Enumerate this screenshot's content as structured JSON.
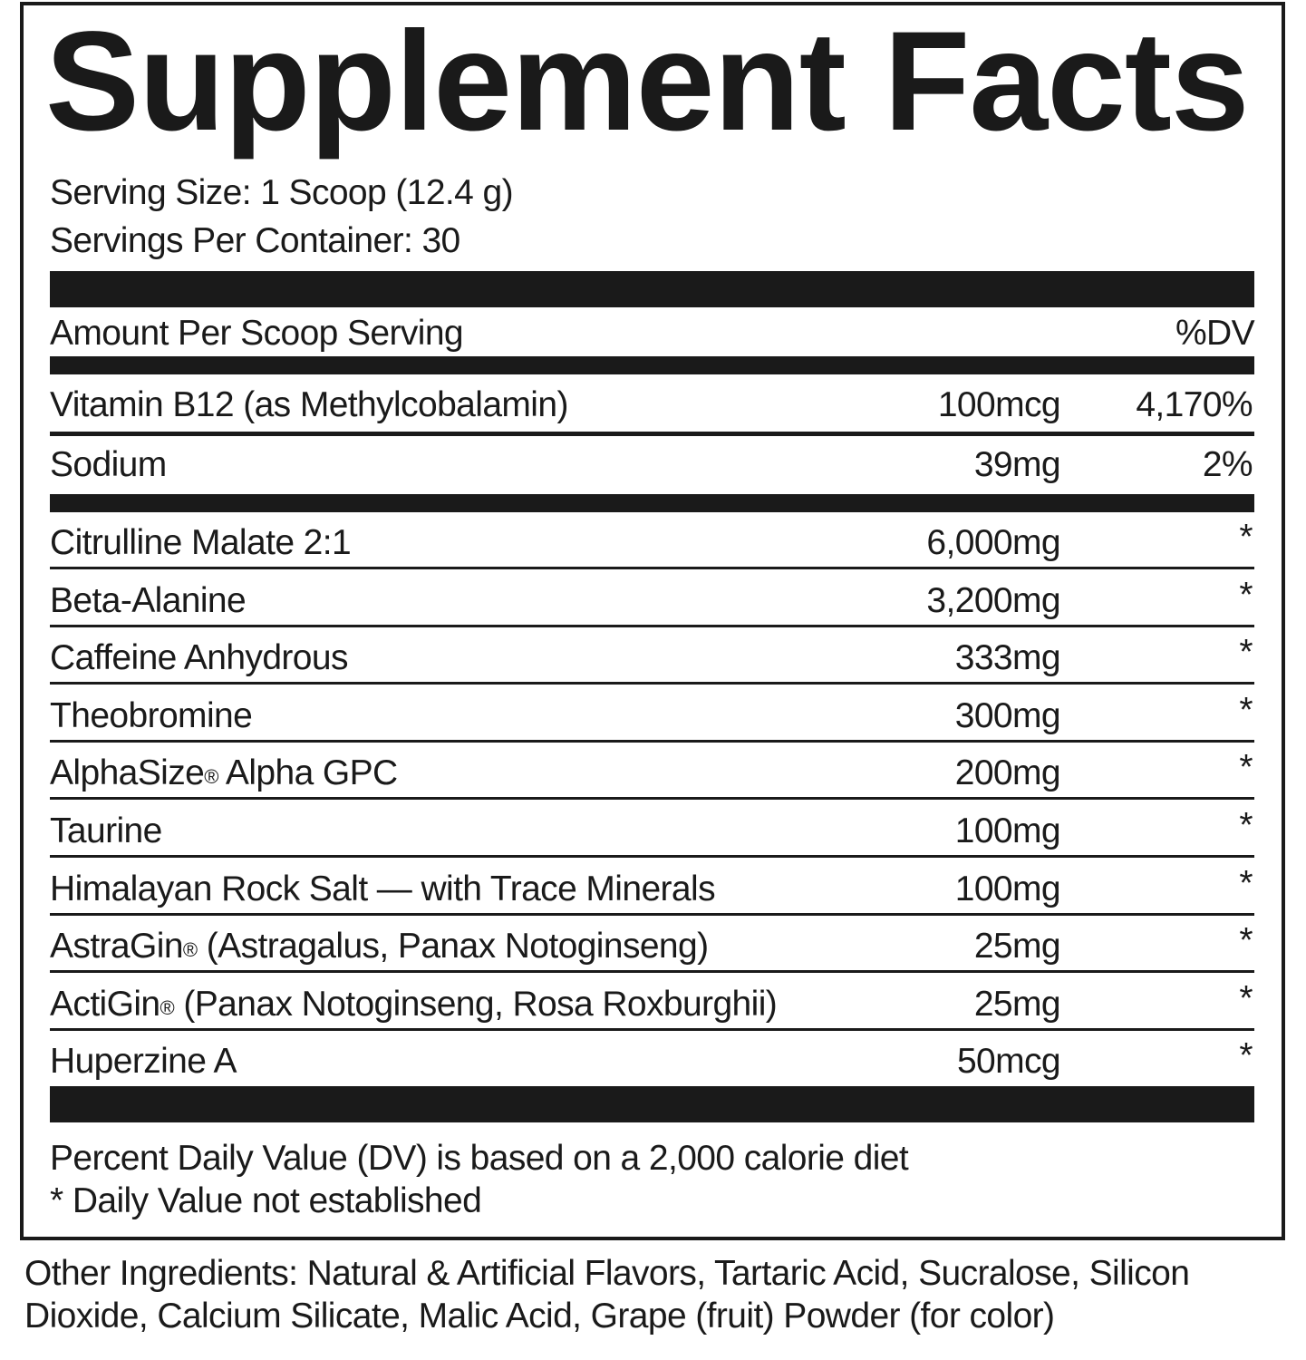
{
  "title": "Supplement Facts",
  "serving_size": "Serving Size: 1 Scoop (12.4 g)",
  "servings_per_container": "Servings Per Container: 30",
  "header": {
    "amount_label": "Amount Per Scoop Serving",
    "dv_label": "%DV"
  },
  "vitamins": [
    {
      "name": "Vitamin B12 (as Methylcobalamin)",
      "amount": "100mcg",
      "dv": "4,170%"
    },
    {
      "name": "Sodium",
      "amount": "39mg",
      "dv": "2%"
    }
  ],
  "ingredients": [
    {
      "name": "Citrulline Malate 2:1",
      "amount": "6,000mg",
      "dv": "*"
    },
    {
      "name": "Beta-Alanine",
      "amount": "3,200mg",
      "dv": "*"
    },
    {
      "name": "Caffeine Anhydrous",
      "amount": "333mg",
      "dv": "*"
    },
    {
      "name": "Theobromine",
      "amount": "300mg",
      "dv": "*"
    },
    {
      "name": "AlphaSize",
      "reg": "®",
      "name_rest": " Alpha GPC",
      "amount": "200mg",
      "dv": "*"
    },
    {
      "name": "Taurine",
      "amount": "100mg",
      "dv": "*"
    },
    {
      "name": "Himalayan Rock Salt — with Trace Minerals",
      "amount": "100mg",
      "dv": "*"
    },
    {
      "name": "AstraGin",
      "reg": "®",
      "name_rest": " (Astragalus, Panax Notoginseng)",
      "amount": "25mg",
      "dv": "*"
    },
    {
      "name": "ActiGin",
      "reg": "®",
      "name_rest": " (Panax Notoginseng, Rosa Roxburghii)",
      "amount": "25mg",
      "dv": "*"
    },
    {
      "name": "Huperzine A",
      "amount": "50mcg",
      "dv": "*"
    }
  ],
  "footnotes": [
    "Percent Daily Value (DV) is based on a 2,000 calorie diet",
    "* Daily Value not established"
  ],
  "other_ingredients": [
    "Other Ingredients: Natural & Artificial Flavors, Tartaric Acid, Sucralose, Silicon",
    "Dioxide, Calcium Silicate, Malic Acid, Grape (fruit) Powder (for color)"
  ]
}
